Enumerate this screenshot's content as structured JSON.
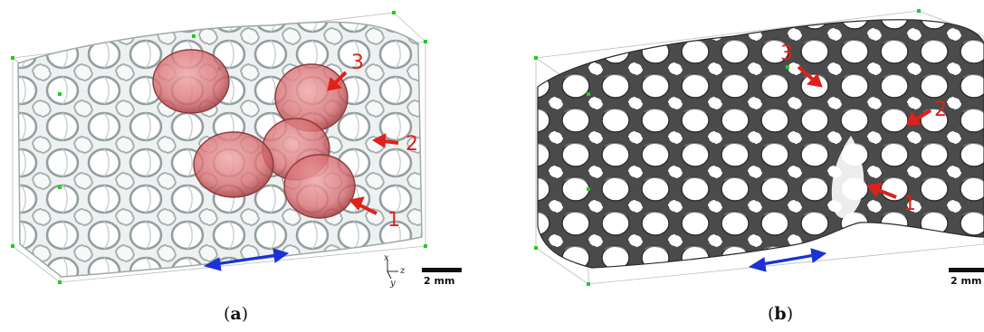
{
  "panel_a": {
    "caption_prefix": "(",
    "caption_letter": "a",
    "caption_suffix": ")",
    "scale_bar_label": "2 mm",
    "axis_labels": {
      "x": "x",
      "y": "y",
      "z": "z"
    },
    "markers": [
      {
        "number": "1"
      },
      {
        "number": "2"
      },
      {
        "number": "3"
      }
    ]
  },
  "panel_b": {
    "caption_prefix": "(",
    "caption_letter": "b",
    "caption_suffix": ")",
    "scale_bar_label": "2 mm",
    "markers": [
      {
        "number": "1"
      },
      {
        "number": "2"
      },
      {
        "number": "3"
      }
    ]
  },
  "colors": {
    "foam_light": "#b9c3c3",
    "foam_dark": "#4a4a4a",
    "bubble": "#d9787a",
    "arrow_red": "#e0201b",
    "arrow_blue": "#1a32d6",
    "corner_green": "#22cc22"
  }
}
